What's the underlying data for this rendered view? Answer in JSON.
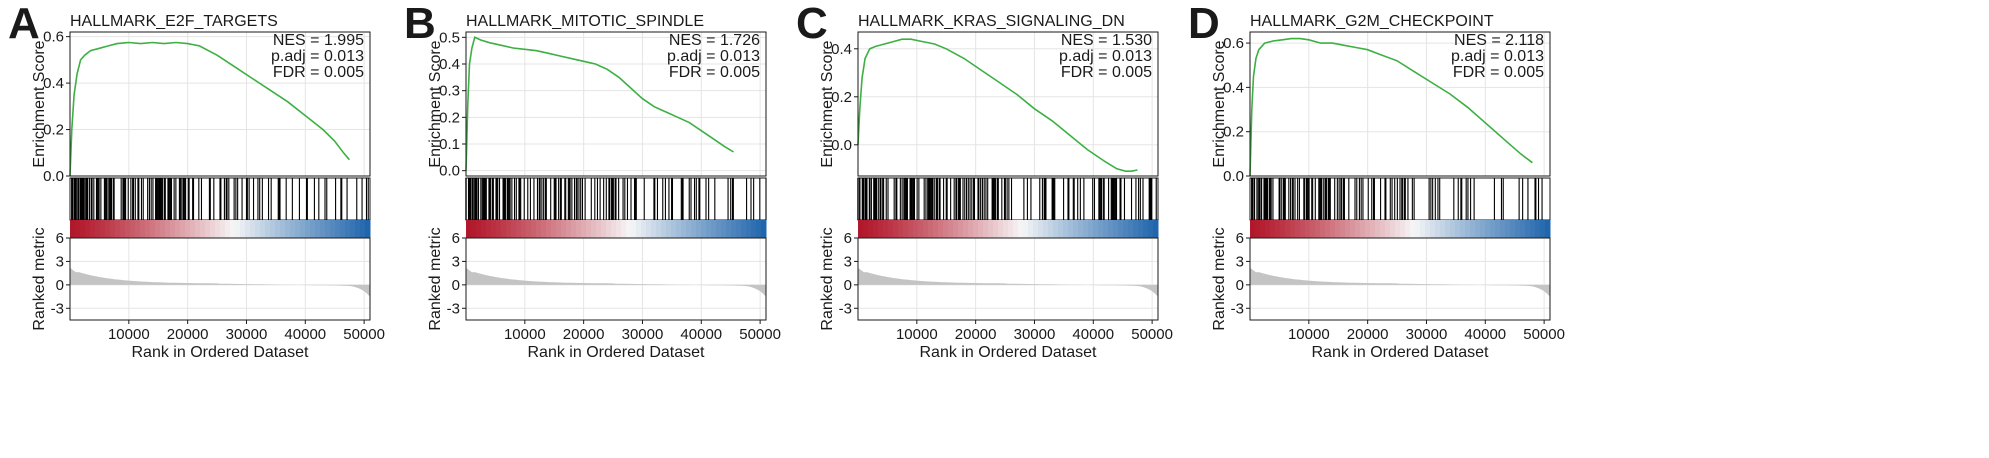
{
  "chart_data": [
    {
      "panel": "A",
      "type": "line",
      "title": "HALLMARK_E2F_TARGETS",
      "stats": {
        "nes": "NES = 1.995",
        "padj": "p.adj = 0.013",
        "fdr": "FDR = 0.005"
      },
      "ylabel_top": "Enrichment Score",
      "ylabel_bottom": "Ranked metric",
      "xlabel": "Rank in Ordered Dataset",
      "ylim": [
        0.0,
        0.62
      ],
      "yticks": [
        0.0,
        0.2,
        0.4,
        0.6
      ],
      "ytick_labels": [
        "0.0",
        "0.2",
        "0.4",
        "0.6"
      ],
      "xlim": [
        0,
        51000
      ],
      "xticks": [
        10000,
        20000,
        30000,
        40000,
        50000
      ],
      "xtick_labels": [
        "10000",
        "20000",
        "30000",
        "40000",
        "50000"
      ],
      "metric_ylim": [
        -4.5,
        6
      ],
      "metric_ticks": [
        6,
        3,
        0,
        -3
      ],
      "metric_tick_labels": [
        "6",
        "3",
        "0",
        "-3"
      ],
      "es_curve": {
        "x": [
          0,
          300,
          700,
          1200,
          1800,
          2500,
          3500,
          5000,
          6500,
          8000,
          10000,
          12000,
          14000,
          16000,
          18000,
          20000,
          22000,
          25000,
          28000,
          31000,
          34000,
          37000,
          40000,
          43000,
          45000,
          46500,
          47500
        ],
        "y": [
          0.0,
          0.2,
          0.35,
          0.44,
          0.5,
          0.52,
          0.54,
          0.55,
          0.56,
          0.57,
          0.575,
          0.57,
          0.575,
          0.57,
          0.575,
          0.57,
          0.56,
          0.52,
          0.47,
          0.42,
          0.37,
          0.32,
          0.26,
          0.2,
          0.15,
          0.1,
          0.07
        ]
      },
      "hit_density": [
        1,
        1,
        1,
        0.9,
        1,
        0.9,
        1,
        0.9,
        0.9,
        0.9,
        0.8,
        0.8,
        0.7,
        0.6,
        0.5,
        0.4,
        0.35,
        0.3,
        0.25,
        0.35,
        0.3,
        0.25,
        0.25,
        0.3,
        0.35
      ]
    },
    {
      "panel": "B",
      "type": "line",
      "title": "HALLMARK_MITOTIC_SPINDLE",
      "stats": {
        "nes": "NES = 1.726",
        "padj": "p.adj = 0.013",
        "fdr": "FDR = 0.005"
      },
      "ylabel_top": "Enrichment Score",
      "ylabel_bottom": "Ranked metric",
      "xlabel": "Rank in Ordered Dataset",
      "ylim": [
        -0.02,
        0.52
      ],
      "yticks": [
        0.0,
        0.1,
        0.2,
        0.3,
        0.4,
        0.5
      ],
      "ytick_labels": [
        "0.0",
        "0.1",
        "0.2",
        "0.3",
        "0.4",
        "0.5"
      ],
      "xlim": [
        0,
        51000
      ],
      "xticks": [
        10000,
        20000,
        30000,
        40000,
        50000
      ],
      "xtick_labels": [
        "10000",
        "20000",
        "30000",
        "40000",
        "50000"
      ],
      "metric_ylim": [
        -4.5,
        6
      ],
      "metric_ticks": [
        6,
        3,
        0,
        -3
      ],
      "metric_tick_labels": [
        "6",
        "3",
        "0",
        "-3"
      ],
      "es_curve": {
        "x": [
          0,
          300,
          600,
          1000,
          1500,
          2500,
          4000,
          6000,
          8000,
          10000,
          12000,
          14000,
          16000,
          18000,
          20000,
          22000,
          24000,
          26000,
          28000,
          30000,
          32000,
          34000,
          36000,
          38000,
          40000,
          42000,
          44000,
          45500
        ],
        "y": [
          0.0,
          0.25,
          0.4,
          0.46,
          0.5,
          0.49,
          0.48,
          0.47,
          0.46,
          0.455,
          0.45,
          0.44,
          0.43,
          0.42,
          0.41,
          0.4,
          0.38,
          0.35,
          0.31,
          0.27,
          0.24,
          0.22,
          0.2,
          0.18,
          0.15,
          0.12,
          0.09,
          0.07
        ]
      },
      "hit_density": [
        1,
        1,
        0.9,
        0.9,
        0.9,
        0.8,
        0.8,
        0.8,
        0.8,
        0.75,
        0.7,
        0.7,
        0.7,
        0.65,
        0.6,
        0.55,
        0.5,
        0.5,
        0.45,
        0.45,
        0.4,
        0.4,
        0.35,
        0.35,
        0.3
      ]
    },
    {
      "panel": "C",
      "type": "line",
      "title": "HALLMARK_KRAS_SIGNALING_DN",
      "stats": {
        "nes": "NES = 1.530",
        "padj": "p.adj = 0.013",
        "fdr": "FDR = 0.005"
      },
      "ylabel_top": "Enrichment Score",
      "ylabel_bottom": "Ranked metric",
      "xlabel": "Rank in Ordered Dataset",
      "ylim": [
        -0.13,
        0.47
      ],
      "yticks": [
        0.0,
        0.2,
        0.4
      ],
      "ytick_labels": [
        "0.0",
        "0.2",
        "0.4"
      ],
      "xlim": [
        0,
        51000
      ],
      "xticks": [
        10000,
        20000,
        30000,
        40000,
        50000
      ],
      "xtick_labels": [
        "10000",
        "20000",
        "30000",
        "40000",
        "50000"
      ],
      "metric_ylim": [
        -4.5,
        6
      ],
      "metric_ticks": [
        6,
        3,
        0,
        -3
      ],
      "metric_tick_labels": [
        "6",
        "3",
        "0",
        "-3"
      ],
      "es_curve": {
        "x": [
          0,
          300,
          700,
          1200,
          2000,
          3000,
          4500,
          6000,
          7500,
          9000,
          11000,
          13000,
          15000,
          18000,
          21000,
          24000,
          27000,
          30000,
          33000,
          36000,
          39000,
          42000,
          44000,
          45500,
          46500,
          47500
        ],
        "y": [
          0.0,
          0.15,
          0.28,
          0.36,
          0.4,
          0.41,
          0.42,
          0.43,
          0.44,
          0.44,
          0.43,
          0.42,
          0.4,
          0.36,
          0.31,
          0.26,
          0.21,
          0.15,
          0.1,
          0.04,
          -0.02,
          -0.07,
          -0.1,
          -0.11,
          -0.11,
          -0.105
        ]
      },
      "hit_density": [
        1,
        1,
        1,
        0.9,
        0.9,
        0.9,
        0.9,
        0.9,
        0.8,
        0.8,
        0.8,
        0.7,
        0.7,
        0.6,
        0.6,
        0.55,
        0.55,
        0.55,
        0.5,
        0.5,
        0.5,
        0.55,
        0.6,
        0.7,
        0.8
      ]
    },
    {
      "panel": "D",
      "type": "line",
      "title": "HALLMARK_G2M_CHECKPOINT",
      "stats": {
        "nes": "NES = 2.118",
        "padj": "p.adj = 0.013",
        "fdr": "FDR = 0.005"
      },
      "ylabel_top": "Enrichment Score",
      "ylabel_bottom": "Ranked metric",
      "xlabel": "Rank in Ordered Dataset",
      "ylim": [
        0.0,
        0.65
      ],
      "yticks": [
        0.0,
        0.2,
        0.4,
        0.6
      ],
      "ytick_labels": [
        "0.0",
        "0.2",
        "0.4",
        "0.6"
      ],
      "xlim": [
        0,
        51000
      ],
      "xticks": [
        10000,
        20000,
        30000,
        40000,
        50000
      ],
      "xtick_labels": [
        "10000",
        "20000",
        "30000",
        "40000",
        "50000"
      ],
      "metric_ylim": [
        -4.5,
        6
      ],
      "metric_ticks": [
        6,
        3,
        0,
        -3
      ],
      "metric_tick_labels": [
        "6",
        "3",
        "0",
        "-3"
      ],
      "es_curve": {
        "x": [
          0,
          300,
          600,
          1000,
          1500,
          2500,
          4000,
          5500,
          7000,
          8500,
          10000,
          12000,
          14000,
          16000,
          18000,
          20000,
          22000,
          25000,
          28000,
          31000,
          34000,
          37000,
          40000,
          43000,
          46000,
          48000
        ],
        "y": [
          0.0,
          0.3,
          0.45,
          0.53,
          0.57,
          0.6,
          0.61,
          0.615,
          0.62,
          0.62,
          0.615,
          0.6,
          0.6,
          0.59,
          0.58,
          0.57,
          0.55,
          0.52,
          0.47,
          0.42,
          0.37,
          0.31,
          0.24,
          0.17,
          0.1,
          0.06
        ]
      },
      "hit_density": [
        1,
        1,
        1,
        1,
        0.9,
        0.9,
        0.9,
        0.9,
        0.8,
        0.8,
        0.75,
        0.7,
        0.6,
        0.55,
        0.5,
        0.45,
        0.4,
        0.35,
        0.3,
        0.3,
        0.25,
        0.25,
        0.2,
        0.2,
        0.15
      ]
    }
  ],
  "colors": {
    "curve": "#3cb043",
    "axis": "#1a1a1a",
    "grid": "#e5e5e5",
    "hits": "#000000",
    "metric_fill": "#c4c4c4",
    "heat_positive": "#b2182b",
    "heat_negative": "#2166ac"
  }
}
